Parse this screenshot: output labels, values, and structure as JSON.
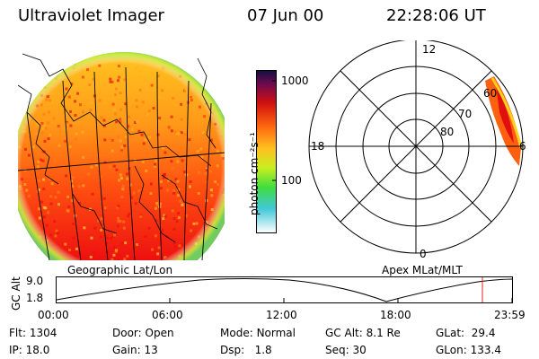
{
  "header": {
    "instrument": "Ultraviolet Imager",
    "date": "07 Jun 00",
    "time": "22:28:06 UT"
  },
  "colorbar": {
    "label": "photon cm⁻²s⁻¹",
    "ticks": [
      "1000",
      "100"
    ]
  },
  "polar": {
    "lat_labels": [
      "60",
      "70",
      "80"
    ],
    "mlt_labels": {
      "top": "12",
      "left": "18",
      "right": "6",
      "bottom": "0"
    }
  },
  "panel_titles": {
    "left": "Geographic Lat/Lon",
    "right": "Apex MLat/MLT"
  },
  "altitude_plot": {
    "ylabel": "GC Alt",
    "yticks": [
      "9.0",
      "1.8"
    ],
    "xticks": [
      "00:00",
      "06:00",
      "12:00",
      "18:00",
      "23:59"
    ]
  },
  "status": {
    "flt_label": "Flt:",
    "flt_value": "1304",
    "ip_label": "IP:",
    "ip_value": "18.0",
    "door_label": "Door:",
    "door_value": "Open",
    "gain_label": "Gain:",
    "gain_value": "13",
    "mode_label": "Mode:",
    "mode_value": "Normal",
    "dsp_label": "Dsp:",
    "dsp_value": "1.8",
    "gcalt_label": "GC Alt:",
    "gcalt_value": "8.1 Re",
    "seq_label": "Seq:",
    "seq_value": "30",
    "glat_label": "GLat:",
    "glat_value": "29.4",
    "glon_label": "GLon:",
    "glon_value": "133.4"
  }
}
